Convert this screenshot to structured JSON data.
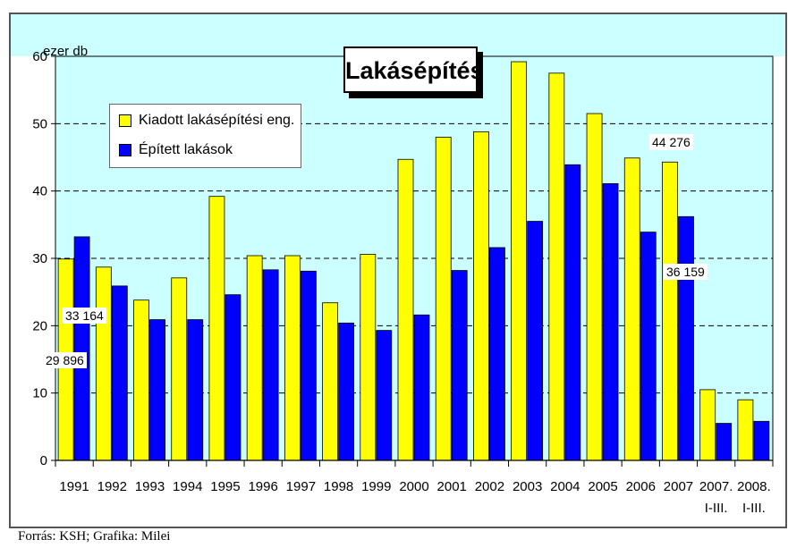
{
  "chart_data": {
    "type": "bar",
    "title": "Lakásépítés",
    "ylabel": "ezer db",
    "ylim": [
      0,
      60
    ],
    "yticks": [
      "0",
      "10",
      "20",
      "30",
      "40",
      "50",
      "60"
    ],
    "categories": [
      "1991",
      "1992",
      "1993",
      "1994",
      "1995",
      "1996",
      "1997",
      "1998",
      "1999",
      "2000",
      "2001",
      "2002",
      "2003",
      "2004",
      "2005",
      "2006",
      "2007",
      "2007. I-III.",
      "2008. I-III."
    ],
    "series": [
      {
        "name": "Kiadott lakásépítési eng.",
        "color": "#ffff00",
        "values": [
          29.9,
          28.7,
          23.8,
          27.1,
          39.2,
          30.4,
          30.4,
          23.4,
          30.6,
          44.7,
          48.0,
          48.8,
          59.2,
          57.5,
          51.5,
          44.9,
          44.3,
          10.5,
          9.0
        ]
      },
      {
        "name": "Épített lakások",
        "color": "#0000ff",
        "values": [
          33.2,
          25.9,
          20.9,
          20.9,
          24.6,
          28.3,
          28.1,
          20.4,
          19.3,
          21.6,
          28.2,
          31.6,
          35.5,
          43.9,
          41.1,
          33.9,
          36.2,
          5.5,
          5.8
        ]
      }
    ],
    "data_labels": [
      "33 164",
      "29 896",
      "44 276",
      "36 159"
    ],
    "grid": true,
    "legend": "top-left"
  },
  "source": "Forrás: KSH; Grafika: Milei"
}
